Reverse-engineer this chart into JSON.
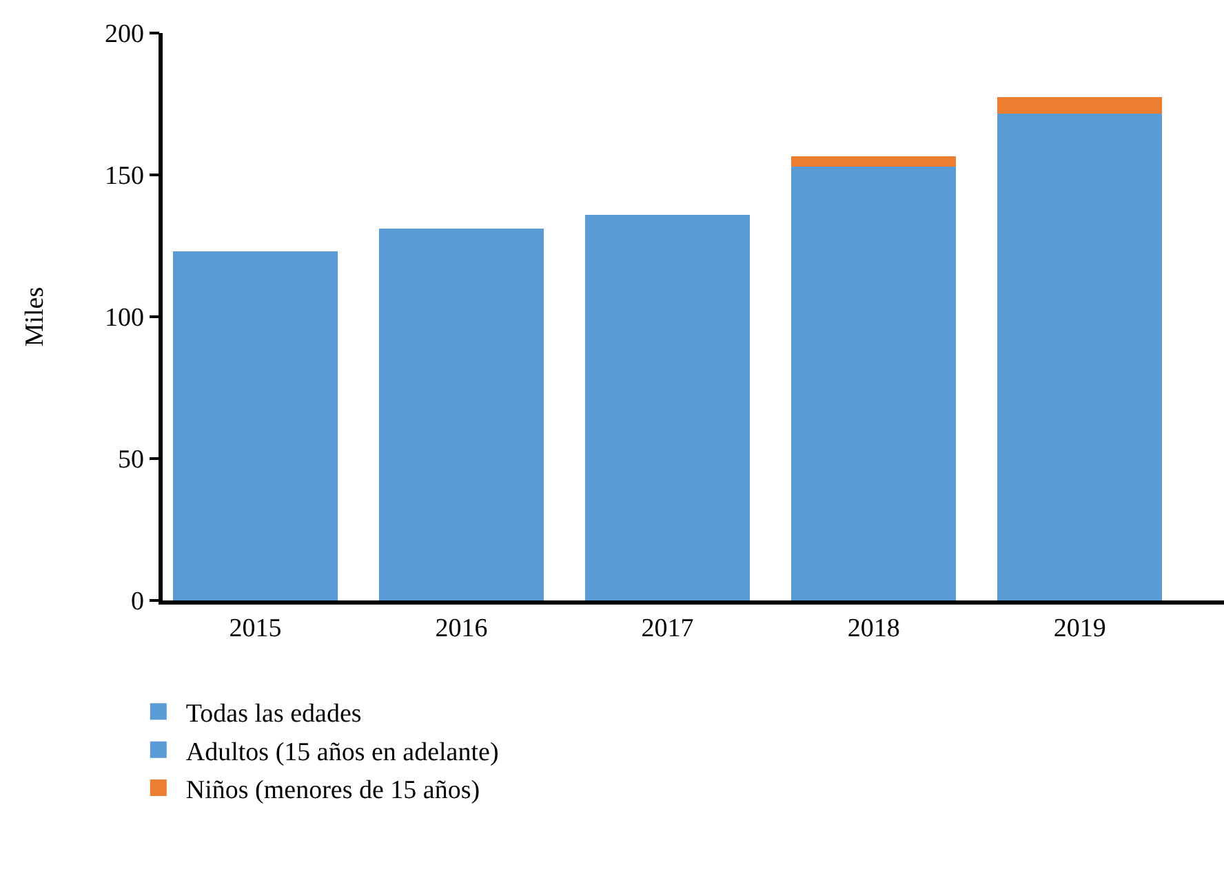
{
  "chart_data": {
    "type": "bar",
    "stacked": true,
    "ylabel": "Miles",
    "categories": [
      "2015",
      "2016",
      "2017",
      "2018",
      "2019"
    ],
    "series": [
      {
        "name": "Todas las edades",
        "color": "#5b9bd5",
        "values": [
          123,
          131,
          136,
          null,
          null
        ]
      },
      {
        "name": "Adultos (15 años en adelante)",
        "color": "#5b9bd5",
        "values": [
          null,
          null,
          null,
          153,
          171.5
        ]
      },
      {
        "name": "Niños (menores de 15 años)",
        "color": "#ed7d31",
        "values": [
          null,
          null,
          null,
          3.5,
          6
        ]
      }
    ],
    "ylim": [
      0,
      200
    ],
    "yticks": [
      0,
      50,
      100,
      150,
      200
    ],
    "legend": "bottom left"
  }
}
